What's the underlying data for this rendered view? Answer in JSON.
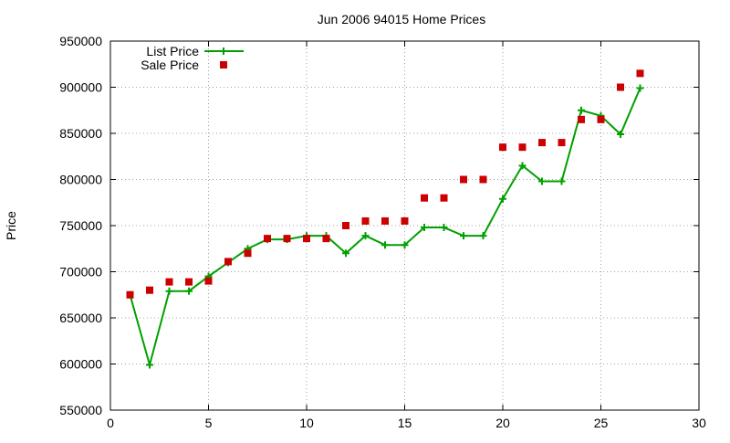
{
  "chart_data": {
    "type": "line",
    "title": "Jun 2006 94015 Home Prices",
    "xlabel": "",
    "ylabel": "Price",
    "xlim": [
      0,
      30
    ],
    "ylim": [
      550000,
      950000
    ],
    "x_ticks": [
      0,
      5,
      10,
      15,
      20,
      25,
      30
    ],
    "y_ticks": [
      550000,
      600000,
      650000,
      700000,
      750000,
      800000,
      850000,
      900000,
      950000
    ],
    "grid": true,
    "legend_position": "top-left",
    "series": [
      {
        "name": "List Price",
        "style": "line-with-plus-markers",
        "color": "#00a000",
        "x": [
          1,
          2,
          3,
          4,
          5,
          6,
          7,
          8,
          9,
          10,
          11,
          12,
          13,
          14,
          15,
          16,
          17,
          18,
          19,
          20,
          21,
          22,
          23,
          24,
          25,
          26,
          27
        ],
        "values": [
          675000,
          599000,
          679000,
          679000,
          695000,
          710000,
          725000,
          735000,
          735000,
          739000,
          739000,
          720000,
          739000,
          729000,
          729000,
          748000,
          748000,
          739000,
          739000,
          779000,
          815000,
          798000,
          798000,
          875000,
          869000,
          849000,
          899000
        ]
      },
      {
        "name": "Sale Price",
        "style": "square-markers",
        "color": "#cc0000",
        "x": [
          1,
          2,
          3,
          4,
          5,
          6,
          7,
          8,
          9,
          10,
          11,
          12,
          13,
          14,
          15,
          16,
          17,
          18,
          19,
          20,
          21,
          22,
          23,
          24,
          25,
          26,
          27
        ],
        "values": [
          675000,
          680000,
          689000,
          689000,
          690000,
          711000,
          720000,
          736000,
          736000,
          736000,
          736000,
          750000,
          755000,
          755000,
          755000,
          780000,
          780000,
          800000,
          800000,
          835000,
          835000,
          840000,
          840000,
          865000,
          865000,
          900000,
          915000
        ]
      }
    ]
  }
}
